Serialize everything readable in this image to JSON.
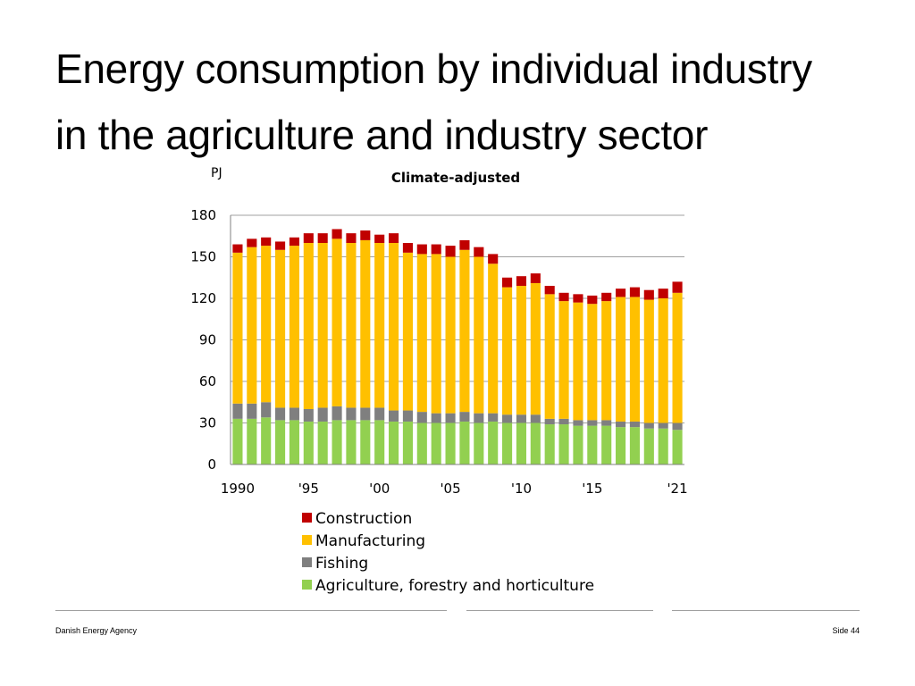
{
  "slide": {
    "title_line1": "Energy consumption by individual industry",
    "title_line2": "in the agriculture and industry sector"
  },
  "footer": {
    "organization": "Danish Energy Agency",
    "page": "Side 44"
  },
  "colors": {
    "construction": "#c00000",
    "manufacturing": "#ffc000",
    "fishing": "#7f7f7f",
    "agriculture": "#92d050",
    "gridline": "#a0a0a0",
    "footer_line": "#a0a0a0"
  },
  "chart_data": {
    "type": "bar",
    "stacked": true,
    "title": "Climate-adjusted",
    "unit_label": "PJ",
    "xlabel": "",
    "ylabel": "",
    "ylim": [
      0,
      180
    ],
    "yticks": [
      0,
      30,
      60,
      90,
      120,
      150,
      180
    ],
    "grid": true,
    "legend_position": "bottom",
    "categories": [
      "1990",
      "1991",
      "1992",
      "1993",
      "1994",
      "1995",
      "1996",
      "1997",
      "1998",
      "1999",
      "2000",
      "2001",
      "2002",
      "2003",
      "2004",
      "2005",
      "2006",
      "2007",
      "2008",
      "2009",
      "2010",
      "2011",
      "2012",
      "2013",
      "2014",
      "2015",
      "2016",
      "2017",
      "2018",
      "2019",
      "2020",
      "2021"
    ],
    "tick_labels": [
      "1990",
      "",
      "",
      "",
      "",
      "'95",
      "",
      "",
      "",
      "",
      "'00",
      "",
      "",
      "",
      "",
      "'05",
      "",
      "",
      "",
      "",
      "'10",
      "",
      "",
      "",
      "",
      "'15",
      "",
      "",
      "",
      "",
      "",
      "'21"
    ],
    "series": [
      {
        "name": "Agriculture, forestry and horticulture",
        "color_key": "agriculture",
        "values": [
          33,
          33,
          34,
          32,
          32,
          31,
          31,
          32,
          32,
          32,
          32,
          31,
          31,
          30,
          30,
          30,
          31,
          30,
          31,
          30,
          30,
          30,
          29,
          29,
          28,
          28,
          28,
          27,
          27,
          26,
          26,
          25
        ]
      },
      {
        "name": "Fishing",
        "color_key": "fishing",
        "values": [
          11,
          11,
          11,
          9,
          9,
          9,
          10,
          10,
          9,
          9,
          9,
          8,
          8,
          8,
          7,
          7,
          7,
          7,
          6,
          6,
          6,
          6,
          4,
          4,
          4,
          4,
          4,
          4,
          4,
          4,
          4,
          5
        ]
      },
      {
        "name": "Manufacturing",
        "color_key": "manufacturing",
        "values": [
          109,
          113,
          113,
          114,
          117,
          120,
          119,
          121,
          119,
          121,
          119,
          121,
          114,
          114,
          115,
          113,
          117,
          113,
          108,
          92,
          93,
          95,
          90,
          85,
          85,
          84,
          86,
          90,
          90,
          89,
          90,
          94
        ]
      },
      {
        "name": "Construction",
        "color_key": "construction",
        "values": [
          6,
          6,
          6,
          6,
          6,
          7,
          7,
          7,
          7,
          7,
          6,
          7,
          7,
          7,
          7,
          8,
          7,
          7,
          7,
          7,
          7,
          7,
          6,
          6,
          6,
          6,
          6,
          6,
          7,
          7,
          7,
          8
        ]
      }
    ]
  }
}
